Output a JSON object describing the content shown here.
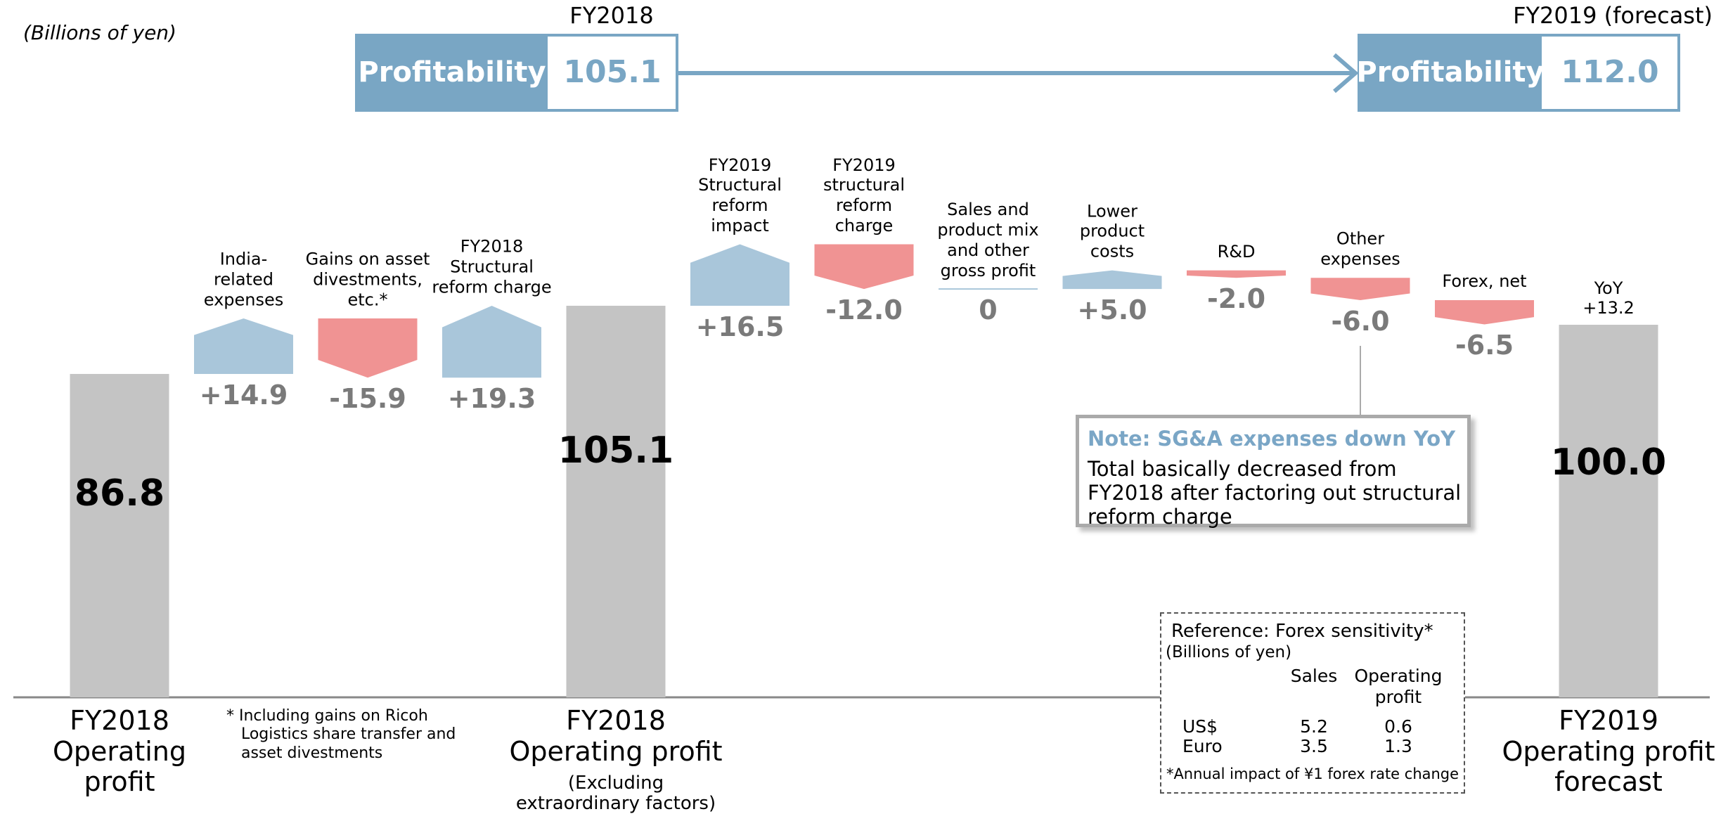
{
  "unit_note": "(Billions of yen)",
  "header": {
    "left": {
      "period": "FY2018",
      "label": "Profitability",
      "value": "105.1"
    },
    "right": {
      "period": "FY2019 (forecast)",
      "label": "Profitability",
      "value": "112.0"
    }
  },
  "chart_data": {
    "type": "waterfall",
    "categories": [
      "FY2018\nOperating\nprofit",
      "India-\nrelated\nexpenses",
      "Gains on asset\ndivestments,\netc.*",
      "FY2018\nStructural\nreform charge",
      "FY2018\nOperating profit",
      "FY2019\nStructural\nreform\nimpact",
      "FY2019\nstructural\nreform\ncharge",
      "Sales and\nproduct mix\nand other\ngross profit",
      "Lower\nproduct\ncosts",
      "R&D",
      "Other\nexpenses",
      "Forex, net",
      "FY2019\nOperating profit\nforecast"
    ],
    "category_sublabels": [
      null,
      null,
      null,
      null,
      "(Excluding\nextraordinary factors)",
      null,
      null,
      null,
      null,
      null,
      null,
      null,
      null
    ],
    "measure": [
      "total",
      "relative",
      "relative",
      "relative",
      "total",
      "relative",
      "relative",
      "relative",
      "relative",
      "relative",
      "relative",
      "relative",
      "total"
    ],
    "values": [
      86.8,
      14.9,
      -15.9,
      19.3,
      105.1,
      16.5,
      -12.0,
      0,
      5.0,
      -2.0,
      -6.0,
      -6.5,
      100.0
    ],
    "value_labels": [
      "86.8",
      "+14.9",
      "-15.9",
      "+19.3",
      "105.1",
      "+16.5",
      "-12.0",
      "0",
      "+5.0",
      "-2.0",
      "-6.0",
      "-6.5",
      "100.0"
    ],
    "colors": {
      "total": "#c4c4c4",
      "increase": "#a9c6da",
      "decrease": "#f09393"
    },
    "total_annotation": "YoY\n+13.2",
    "ylim": [
      0,
      130
    ]
  },
  "note": {
    "title": "Note: SG&A expenses down YoY",
    "body": "Total basically decreased from\nFY2018 after factoring out structural\nreform charge"
  },
  "footnote": "* Including gains on Ricoh\n   Logistics share transfer and\n   asset divestments",
  "reference": {
    "title": "Reference: Forex sensitivity*",
    "unit": "(Billions of yen)",
    "columns": [
      "Sales",
      "Operating\nprofit"
    ],
    "rows": [
      [
        "US$",
        5.2,
        0.6
      ],
      [
        "Euro",
        3.5,
        1.3
      ]
    ],
    "note": "*Annual impact of ¥1 forex rate change"
  }
}
